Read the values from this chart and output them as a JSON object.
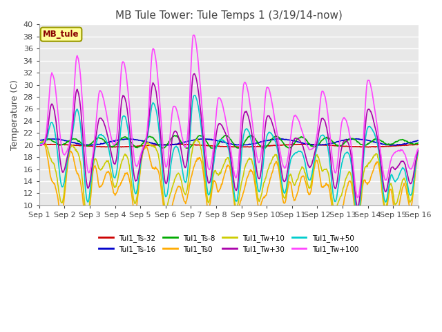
{
  "title": "MB Tule Tower: Tule Temps 1 (3/19/14-now)",
  "ylabel": "Temperature (C)",
  "ylim": [
    10,
    40
  ],
  "yticks": [
    10,
    12,
    14,
    16,
    18,
    20,
    22,
    24,
    26,
    28,
    30,
    32,
    34,
    36,
    38,
    40
  ],
  "x_labels": [
    "Sep 1",
    "Sep 2",
    "Sep 3",
    "Sep 4",
    "Sep 5",
    "Sep 6",
    "Sep 7",
    "Sep 8",
    "Sep 9",
    "Sep 10",
    "Sep 11",
    "Sep 12",
    "Sep 13",
    "Sep 14",
    "Sep 15",
    "Sep 16"
  ],
  "legend_box_label": "MB_tule",
  "legend_box_color": "#ffff99",
  "legend_box_border": "#999900",
  "series": [
    {
      "label": "Tul1_Ts-32",
      "color": "#cc0000",
      "lw": 1.2
    },
    {
      "label": "Tul1_Ts-16",
      "color": "#0000cc",
      "lw": 1.2
    },
    {
      "label": "Tul1_Ts-8",
      "color": "#00aa00",
      "lw": 1.2
    },
    {
      "label": "Tul1_Ts0",
      "color": "#ffaa00",
      "lw": 1.2
    },
    {
      "label": "Tul1_Tw+10",
      "color": "#cccc00",
      "lw": 1.2
    },
    {
      "label": "Tul1_Tw+30",
      "color": "#aa00aa",
      "lw": 1.2
    },
    {
      "label": "Tul1_Tw+50",
      "color": "#00cccc",
      "lw": 1.2
    },
    {
      "label": "Tul1_Tw+100",
      "color": "#ff44ff",
      "lw": 1.2
    }
  ],
  "bg_color": "#ffffff",
  "plot_bg_color": "#e8e8e8",
  "grid_color": "#ffffff",
  "title_fontsize": 11,
  "label_fontsize": 9,
  "tick_fontsize": 8,
  "peak_days": [
    0.5,
    1.5,
    2.4,
    3.3,
    4.5,
    5.3,
    6.1,
    7.1,
    8.1,
    9.0,
    10.1,
    11.2,
    12.0,
    13.0,
    14.1
  ],
  "peak_heights": [
    32,
    35,
    29,
    34,
    36,
    27,
    38.5,
    28,
    31,
    30,
    25,
    29,
    25,
    31,
    19
  ],
  "trough_days": [
    0.9,
    1.9,
    3.0,
    3.8,
    5.0,
    5.8,
    6.7,
    7.8,
    8.7,
    9.7,
    10.7,
    11.7,
    12.6,
    13.7,
    14.7
  ],
  "trough_heights": [
    16,
    12,
    19,
    15,
    14,
    18,
    15,
    14,
    16,
    16,
    19,
    14,
    11,
    14,
    16
  ]
}
